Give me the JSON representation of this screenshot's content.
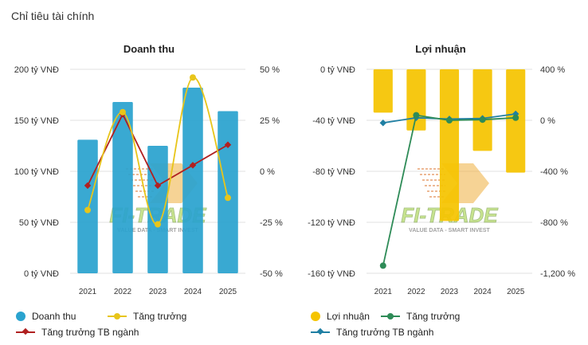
{
  "page": {
    "title": "Chỉ tiêu tài chính"
  },
  "watermark": {
    "brand": "FI-TRADE",
    "tagline": "VALUE DATA - SMART INVEST"
  },
  "colors": {
    "revenue_bar": "#2aa3cf",
    "profit_bar": "#f5c400",
    "growth_yellow": "#e8c51a",
    "growth_green": "#2e8b57",
    "industry_red": "#b02020",
    "industry_teal": "#1f7fa3"
  },
  "chart_data": [
    {
      "type": "bar",
      "title": "Doanh thu",
      "categories": [
        "2021",
        "2022",
        "2023",
        "2024",
        "2025"
      ],
      "series": [
        {
          "name": "Doanh thu",
          "axis": "left",
          "kind": "bar",
          "values": [
            131,
            168,
            125,
            182,
            159
          ]
        },
        {
          "name": "Tăng trưởng",
          "axis": "right",
          "kind": "line",
          "values": [
            -19,
            29,
            -26,
            46,
            -13
          ]
        },
        {
          "name": "Tăng trưởng TB ngành",
          "axis": "right",
          "kind": "line",
          "values": [
            -7,
            28,
            -7,
            3,
            13
          ]
        }
      ],
      "ylim": [
        0,
        200
      ],
      "y2lim": [
        -50,
        50
      ],
      "yticks": [
        "200 tỷ VNĐ",
        "150 tỷ VNĐ",
        "100 tỷ VNĐ",
        "50 tỷ VNĐ",
        "0 tỷ VNĐ"
      ],
      "y2ticks": [
        "50 %",
        "25 %",
        "0 %",
        "-25 %",
        "-50 %"
      ],
      "legend": [
        "Doanh thu",
        "Tăng trưởng",
        "Tăng trưởng TB ngành"
      ],
      "legend_position": "bottom"
    },
    {
      "type": "bar",
      "title": "Lợi nhuận",
      "categories": [
        "2021",
        "2022",
        "2023",
        "2024",
        "2025"
      ],
      "series": [
        {
          "name": "Lợi nhuận",
          "axis": "left",
          "kind": "bar",
          "values": [
            -34,
            -48,
            -119,
            -64,
            -81
          ]
        },
        {
          "name": "Tăng trưởng",
          "axis": "right",
          "kind": "line",
          "values": [
            -1140,
            40,
            0,
            5,
            20
          ]
        },
        {
          "name": "Tăng trưởng TB ngành",
          "axis": "right",
          "kind": "line",
          "values": [
            -20,
            20,
            10,
            15,
            50
          ]
        }
      ],
      "ylim": [
        -160,
        0
      ],
      "y2lim": [
        -1200,
        400
      ],
      "yticks": [
        "0 tỷ VNĐ",
        "-40 tỷ VNĐ",
        "-80 tỷ VNĐ",
        "-120 tỷ VNĐ",
        "-160 tỷ VNĐ"
      ],
      "y2ticks": [
        "400 %",
        "0 %",
        "-400 %",
        "-800 %",
        "-1,200 %"
      ],
      "legend": [
        "Lợi nhuận",
        "Tăng trưởng",
        "Tăng trưởng TB ngành"
      ],
      "legend_position": "bottom"
    }
  ]
}
